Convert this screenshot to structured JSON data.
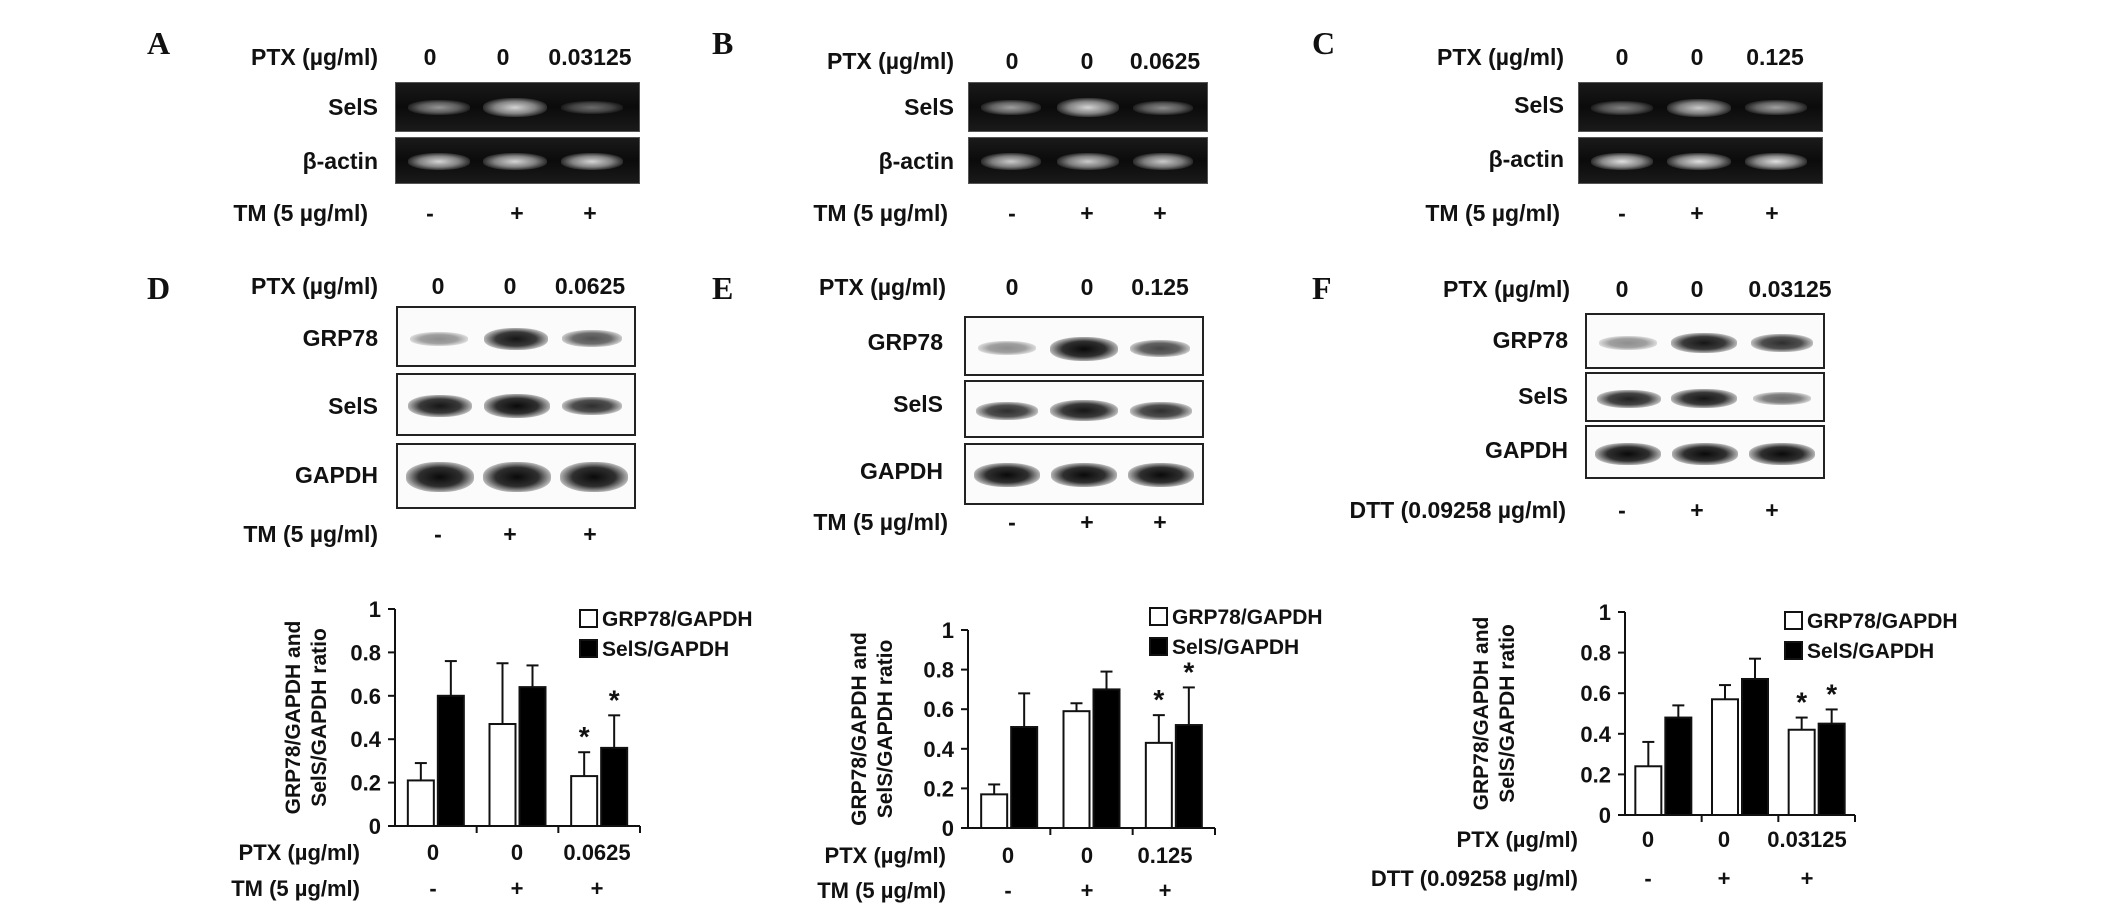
{
  "panels": {
    "A": {
      "label": "A",
      "pt_label": "PTX (µg/ml)",
      "pt_values": [
        "0",
        "0",
        "0.03125"
      ],
      "rows": [
        "SelS",
        "β-actin"
      ],
      "bottom_label": "TM (5 µg/ml)",
      "bottom_values": [
        "-",
        "+",
        "+"
      ]
    },
    "B": {
      "label": "B",
      "pt_label": "PTX (µg/ml)",
      "pt_values": [
        "0",
        "0",
        "0.0625"
      ],
      "rows": [
        "SelS",
        "β-actin"
      ],
      "bottom_label": "TM (5 µg/ml)",
      "bottom_values": [
        "-",
        "+",
        "+"
      ]
    },
    "C": {
      "label": "C",
      "pt_label": "PTX (µg/ml)",
      "pt_values": [
        "0",
        "0",
        "0.125"
      ],
      "rows": [
        "SelS",
        "β-actin"
      ],
      "bottom_label": "TM (5 µg/ml)",
      "bottom_values": [
        "-",
        "+",
        "+"
      ]
    },
    "D": {
      "label": "D",
      "pt_label": "PTX (µg/ml)",
      "pt_values": [
        "0",
        "0",
        "0.0625"
      ],
      "rows": [
        "GRP78",
        "SelS",
        "GAPDH"
      ],
      "bottom_label": "TM (5 µg/ml)",
      "bottom_values": [
        "-",
        "+",
        "+"
      ]
    },
    "E": {
      "label": "E",
      "pt_label": "PTX (µg/ml)",
      "pt_values": [
        "0",
        "0",
        "0.125"
      ],
      "rows": [
        "GRP78",
        "SelS",
        "GAPDH"
      ],
      "bottom_label": "TM (5 µg/ml)",
      "bottom_values": [
        "-",
        "+",
        "+"
      ]
    },
    "F": {
      "label": "F",
      "pt_label": "PTX (µg/ml)",
      "pt_values": [
        "0",
        "0",
        "0.03125"
      ],
      "rows": [
        "GRP78",
        "SelS",
        "GAPDH"
      ],
      "bottom_label": "DTT (0.09258 µg/ml)",
      "bottom_values": [
        "-",
        "+",
        "+"
      ]
    }
  },
  "chart_data": [
    {
      "type": "bar",
      "ylabel": "GRP78/GAPDH and SelS/GAPDH ratio",
      "ylim": [
        0,
        1
      ],
      "yticks": [
        "0",
        "0.2",
        "0.4",
        "0.6",
        "0.8",
        "1"
      ],
      "categories": [
        "0",
        "0",
        "0.0625"
      ],
      "row1_label": "PTX (µg/ml)",
      "row2_label": "TM (5 µg/ml)",
      "row2_values": [
        "-",
        "+",
        "+"
      ],
      "series": [
        {
          "name": "GRP78/GAPDH",
          "values": [
            0.21,
            0.47,
            0.23
          ],
          "errors": [
            0.08,
            0.28,
            0.11
          ],
          "color": "#ffffff"
        },
        {
          "name": "SelS/GAPDH",
          "values": [
            0.6,
            0.64,
            0.36
          ],
          "errors": [
            0.16,
            0.1,
            0.15
          ],
          "color": "#000000"
        }
      ],
      "significance": [
        "",
        "",
        "*"
      ],
      "legend": "top-right"
    },
    {
      "type": "bar",
      "ylabel": "GRP78/GAPDH and SelS/GAPDH ratio",
      "ylim": [
        0,
        1
      ],
      "yticks": [
        "0",
        "0.2",
        "0.4",
        "0.6",
        "0.8",
        "1"
      ],
      "categories": [
        "0",
        "0",
        "0.125"
      ],
      "row1_label": "PTX (µg/ml)",
      "row2_label": "TM (5 µg/ml)",
      "row2_values": [
        "-",
        "+",
        "+"
      ],
      "series": [
        {
          "name": "GRP78/GAPDH",
          "values": [
            0.17,
            0.59,
            0.43
          ],
          "errors": [
            0.05,
            0.04,
            0.14
          ],
          "color": "#ffffff"
        },
        {
          "name": "SelS/GAPDH",
          "values": [
            0.51,
            0.7,
            0.52
          ],
          "errors": [
            0.17,
            0.09,
            0.19
          ],
          "color": "#000000"
        }
      ],
      "significance": [
        "",
        "",
        "*"
      ],
      "legend": "top-right"
    },
    {
      "type": "bar",
      "ylabel": "GRP78/GAPDH and SelS/GAPDH ratio",
      "ylim": [
        0,
        1
      ],
      "yticks": [
        "0",
        "0.2",
        "0.4",
        "0.6",
        "0.8",
        "1"
      ],
      "categories": [
        "0",
        "0",
        "0.03125"
      ],
      "row1_label": "PTX (µg/ml)",
      "row2_label": "DTT (0.09258 µg/ml)",
      "row2_values": [
        "-",
        "+",
        "+"
      ],
      "series": [
        {
          "name": "GRP78/GAPDH",
          "values": [
            0.24,
            0.57,
            0.42
          ],
          "errors": [
            0.12,
            0.07,
            0.06
          ],
          "color": "#ffffff"
        },
        {
          "name": "SelS/GAPDH",
          "values": [
            0.48,
            0.67,
            0.45
          ],
          "errors": [
            0.06,
            0.1,
            0.07
          ],
          "color": "#000000"
        }
      ],
      "significance": [
        "",
        "",
        "*"
      ],
      "legend": "top-right"
    }
  ]
}
